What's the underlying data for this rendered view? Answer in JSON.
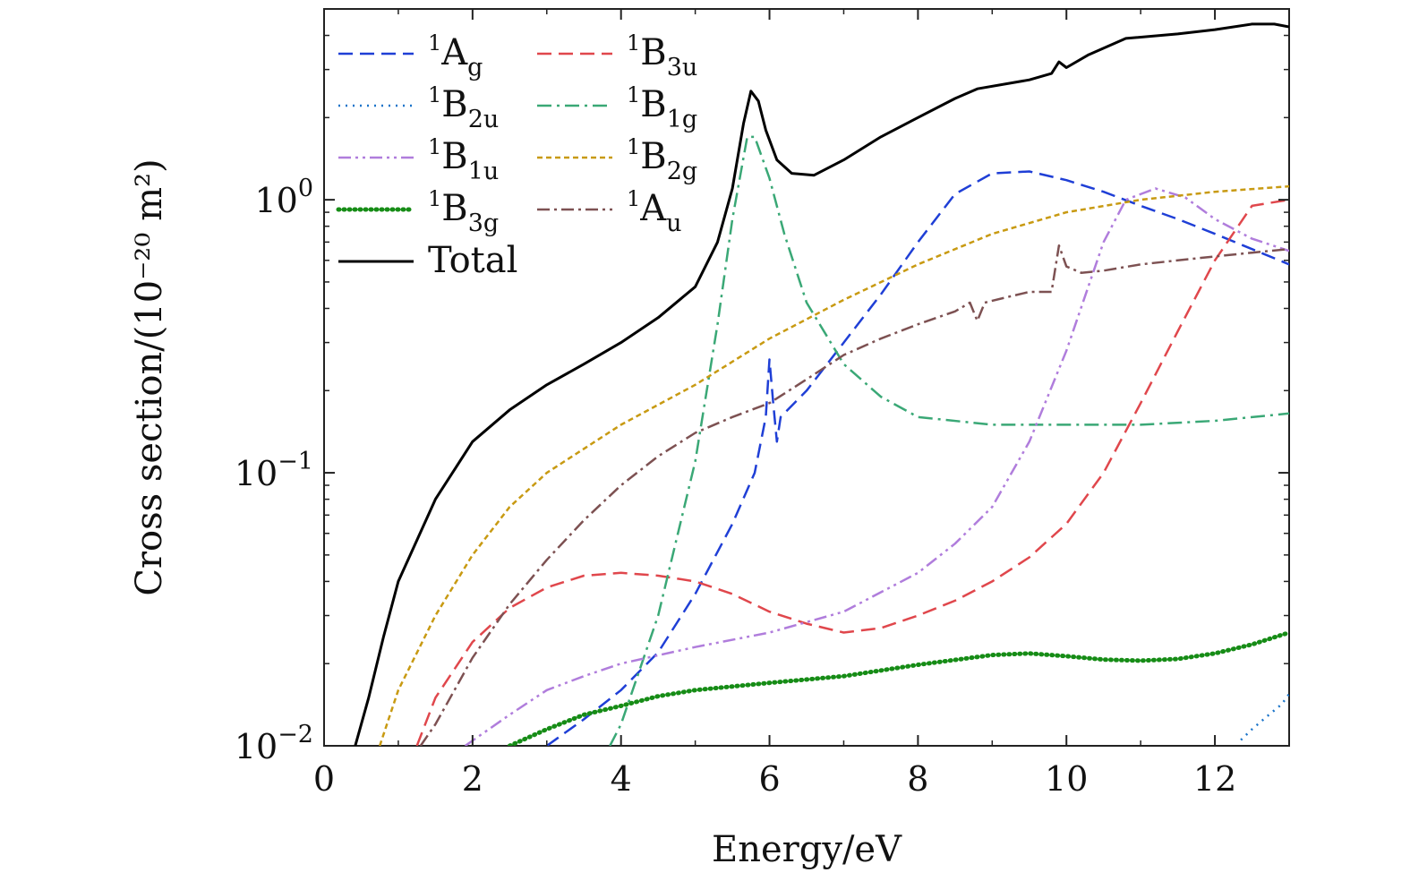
{
  "chart_data": {
    "type": "line",
    "title": "",
    "xlabel": "Energy/eV",
    "ylabel": "Cross section/(10⁻²⁰ m²)",
    "xlim": [
      0,
      13
    ],
    "ylim": [
      0.01,
      5
    ],
    "yscale": "log",
    "xticks": [
      0,
      2,
      4,
      6,
      8,
      10,
      12
    ],
    "xtick_labels": [
      "0",
      "2",
      "4",
      "6",
      "8",
      "10",
      "12"
    ],
    "yticks": [
      0.01,
      0.1,
      1
    ],
    "ytick_labels": [
      {
        "base": "10",
        "exp": "−2"
      },
      {
        "base": "10",
        "exp": "−1"
      },
      {
        "base": "10",
        "exp": "0"
      }
    ],
    "legend_position": "top-left",
    "series": [
      {
        "name": "Ag",
        "sup": "1",
        "sub": "g",
        "color": "#1f3fd6",
        "dash": "16,8",
        "width": 2.5,
        "x": [
          3,
          3.5,
          4,
          4.5,
          5,
          5.5,
          5.8,
          5.95,
          6.0,
          6.05,
          6.1,
          6.15,
          6.5,
          7,
          7.5,
          8,
          8.5,
          9,
          9.5,
          10,
          10.5,
          11,
          11.5,
          12,
          12.5,
          13
        ],
        "y": [
          0.01,
          0.0125,
          0.016,
          0.022,
          0.036,
          0.065,
          0.1,
          0.16,
          0.26,
          0.18,
          0.13,
          0.16,
          0.2,
          0.3,
          0.45,
          0.7,
          1.05,
          1.25,
          1.27,
          1.18,
          1.07,
          0.95,
          0.85,
          0.75,
          0.66,
          0.58
        ]
      },
      {
        "name": "B3u",
        "sup": "1",
        "sub": "3u",
        "color": "#e0474c",
        "dash": "16,8",
        "width": 2.5,
        "x": [
          1.25,
          1.5,
          2,
          2.5,
          3,
          3.5,
          4,
          4.5,
          5,
          5.5,
          6,
          6.5,
          7,
          7.5,
          8,
          8.5,
          9,
          9.5,
          10,
          10.5,
          11,
          11.5,
          12,
          12.5,
          13
        ],
        "y": [
          0.01,
          0.015,
          0.024,
          0.032,
          0.038,
          0.042,
          0.043,
          0.042,
          0.04,
          0.036,
          0.031,
          0.028,
          0.026,
          0.027,
          0.03,
          0.034,
          0.04,
          0.049,
          0.065,
          0.1,
          0.18,
          0.33,
          0.6,
          0.95,
          1.0
        ]
      },
      {
        "name": "B2u",
        "sup": "1",
        "sub": "2u",
        "color": "#1b74c9",
        "dash": "2,6",
        "width": 2.5,
        "x": [
          12.35,
          12.5,
          12.7,
          12.9,
          13
        ],
        "y": [
          0.0105,
          0.0115,
          0.0128,
          0.0142,
          0.0155
        ]
      },
      {
        "name": "B1g",
        "sup": "1",
        "sub": "1g",
        "color": "#3aa876",
        "dash": "16,6,3,6",
        "width": 2.5,
        "x": [
          3.85,
          4,
          4.5,
          5,
          5.3,
          5.5,
          5.7,
          5.8,
          6.0,
          6.2,
          6.5,
          7,
          7.5,
          8,
          9,
          10,
          11,
          12,
          13
        ],
        "y": [
          0.01,
          0.012,
          0.03,
          0.11,
          0.35,
          0.85,
          1.7,
          1.7,
          1.2,
          0.75,
          0.42,
          0.25,
          0.19,
          0.16,
          0.15,
          0.15,
          0.15,
          0.155,
          0.165
        ]
      },
      {
        "name": "B1u",
        "sup": "1",
        "sub": "1u",
        "color": "#b07ddc",
        "dash": "14,5,3,5,3,5",
        "width": 2.5,
        "x": [
          1.9,
          2.5,
          3,
          3.5,
          4,
          5,
          6,
          7,
          8,
          8.5,
          9,
          9.5,
          10,
          10.5,
          10.8,
          11.2,
          11.6,
          12,
          12.5,
          13
        ],
        "y": [
          0.01,
          0.013,
          0.016,
          0.018,
          0.02,
          0.023,
          0.026,
          0.031,
          0.043,
          0.055,
          0.075,
          0.13,
          0.28,
          0.7,
          1.0,
          1.1,
          1.02,
          0.85,
          0.72,
          0.65
        ]
      },
      {
        "name": "B2g",
        "sup": "1",
        "sub": "2g",
        "color": "#c89a12",
        "dash": "6,4",
        "width": 2.5,
        "x": [
          0.75,
          1,
          1.5,
          2,
          2.5,
          3,
          4,
          5,
          6,
          7,
          8,
          9,
          10,
          11,
          12,
          13
        ],
        "y": [
          0.01,
          0.016,
          0.03,
          0.05,
          0.075,
          0.1,
          0.15,
          0.21,
          0.31,
          0.43,
          0.58,
          0.75,
          0.9,
          1.0,
          1.07,
          1.12
        ]
      },
      {
        "name": "B3g",
        "sup": "1",
        "sub": "3g",
        "color": "#168c16",
        "dash": "1,5",
        "width": 5,
        "x": [
          2.5,
          3,
          3.5,
          4,
          4.5,
          5,
          6,
          7,
          8,
          9,
          9.5,
          10,
          10.5,
          11,
          11.5,
          12,
          12.5,
          13
        ],
        "y": [
          0.01,
          0.0115,
          0.013,
          0.014,
          0.0152,
          0.016,
          0.017,
          0.018,
          0.0198,
          0.0215,
          0.0218,
          0.0213,
          0.0207,
          0.0205,
          0.0208,
          0.0218,
          0.0235,
          0.026
        ]
      },
      {
        "name": "Au",
        "sup": "1",
        "sub": "u",
        "color": "#7d5152",
        "dash": "14,5,3,5",
        "width": 2.5,
        "x": [
          1.3,
          1.5,
          2,
          2.5,
          3,
          3.5,
          4,
          4.5,
          5,
          5.5,
          6,
          6.5,
          7,
          7.5,
          8,
          8.5,
          8.7,
          8.8,
          8.9,
          9.2,
          9.5,
          9.8,
          9.9,
          10.0,
          10.2,
          10.5,
          11,
          11.5,
          12,
          12.5,
          13
        ],
        "y": [
          0.01,
          0.012,
          0.021,
          0.033,
          0.048,
          0.067,
          0.09,
          0.115,
          0.14,
          0.16,
          0.18,
          0.22,
          0.27,
          0.31,
          0.35,
          0.39,
          0.42,
          0.36,
          0.42,
          0.44,
          0.46,
          0.46,
          0.68,
          0.57,
          0.54,
          0.55,
          0.58,
          0.6,
          0.62,
          0.64,
          0.66
        ]
      },
      {
        "name": "Total",
        "sup": "",
        "sub": "",
        "color": "#000000",
        "dash": "",
        "width": 3,
        "x": [
          0.42,
          0.6,
          0.8,
          1,
          1.5,
          2,
          2.5,
          3,
          3.5,
          4,
          4.5,
          5,
          5.3,
          5.5,
          5.65,
          5.75,
          5.85,
          5.95,
          6.1,
          6.3,
          6.6,
          7,
          7.5,
          8,
          8.5,
          8.8,
          9.5,
          9.8,
          9.9,
          10.0,
          10.3,
          10.8,
          11.5,
          12,
          12.5,
          12.8,
          13
        ],
        "y": [
          0.01,
          0.015,
          0.025,
          0.04,
          0.08,
          0.13,
          0.17,
          0.21,
          0.25,
          0.3,
          0.37,
          0.48,
          0.7,
          1.1,
          1.9,
          2.5,
          2.3,
          1.8,
          1.4,
          1.25,
          1.23,
          1.4,
          1.7,
          2.0,
          2.35,
          2.55,
          2.75,
          2.9,
          3.2,
          3.05,
          3.4,
          3.9,
          4.05,
          4.2,
          4.4,
          4.4,
          4.3
        ]
      }
    ]
  }
}
